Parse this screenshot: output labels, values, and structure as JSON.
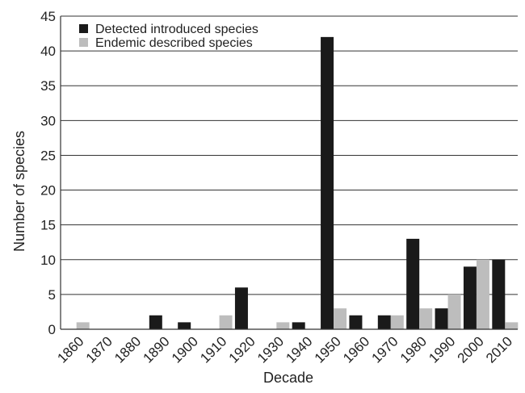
{
  "chart_data": {
    "type": "bar",
    "title": "",
    "xlabel": "Decade",
    "ylabel": "Number of species",
    "ylim": [
      0,
      45
    ],
    "yticks": [
      0,
      5,
      10,
      15,
      20,
      25,
      30,
      35,
      40,
      45
    ],
    "grid": "horizontal",
    "legend_position": "top-left",
    "categories": [
      "1860",
      "1870",
      "1880",
      "1890",
      "1900",
      "1910",
      "1920",
      "1930",
      "1940",
      "1950",
      "1960",
      "1970",
      "1980",
      "1990",
      "2000",
      "2010"
    ],
    "series": [
      {
        "name": "Detected introduced species",
        "color": "#1a1a1a",
        "values": [
          0,
          0,
          0,
          2,
          1,
          0,
          6,
          0,
          1,
          42,
          2,
          2,
          13,
          3,
          9,
          10
        ]
      },
      {
        "name": "Endemic described species",
        "color": "#bdbdbd",
        "values": [
          1,
          0,
          0,
          0,
          0,
          2,
          0,
          1,
          0,
          3,
          0,
          2,
          3,
          5,
          10,
          1
        ]
      }
    ]
  }
}
